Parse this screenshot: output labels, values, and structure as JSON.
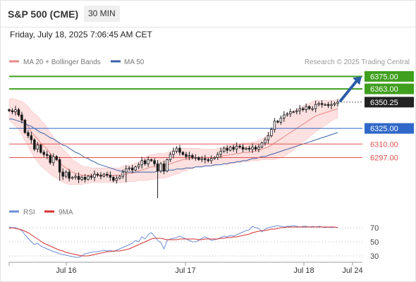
{
  "header": {
    "title": "S&P 500 (CME)",
    "timeframe": "30 MIN",
    "timestamp": "Friday, July 18, 2025 7:06:45 AM CET"
  },
  "main_legend": {
    "ma20_bb": "MA 20 + Bollinger Bands",
    "ma50": "MA 50",
    "credit": "Research © 2025 Trading Central"
  },
  "rsi_legend": {
    "rsi": "RSI",
    "ma9": "9MA"
  },
  "colors": {
    "resistance": "#3f9f1e",
    "support_strong": "#2f68c8",
    "support": "#e05050",
    "price_tag": "#222222",
    "bollinger": "#fde0e0",
    "ma20": "#e88a8a",
    "ma50": "#3a62a8",
    "candle": "#1a1a1a",
    "rsi": "#6d8fd8",
    "rsi_ma": "#d63030",
    "arrow": "#2a5da8"
  },
  "chart_data": [
    {
      "type": "candlestick",
      "instrument": "S&P 500 (CME)",
      "interval": "30 MIN",
      "x_labels": [
        "Jul 16",
        "Jul 17",
        "Jul 18",
        "Jul 24"
      ],
      "ylim": [
        6258,
        6380
      ],
      "levels": [
        {
          "value": 6375.0,
          "label": "6375.00",
          "kind": "resistance"
        },
        {
          "value": 6363.0,
          "label": "6363.00",
          "kind": "resistance"
        },
        {
          "value": 6350.25,
          "label": "6350.25",
          "kind": "current"
        },
        {
          "value": 6325.0,
          "label": "6325.00",
          "kind": "pivot"
        },
        {
          "value": 6310.0,
          "label": "6310.00",
          "kind": "support"
        },
        {
          "value": 6297.0,
          "label": "6297.00",
          "kind": "support"
        }
      ],
      "close": [
        6342,
        6341,
        6343,
        6338,
        6333,
        6321,
        6318,
        6314,
        6305,
        6309,
        6302,
        6300,
        6299,
        6292,
        6298,
        6295,
        6283,
        6279,
        6283,
        6277,
        6278,
        6279,
        6276,
        6278,
        6276,
        6279,
        6278,
        6281,
        6280,
        6279,
        6281,
        6280,
        6278,
        6275,
        6277,
        6279,
        6283,
        6286,
        6287,
        6285,
        6288,
        6290,
        6294,
        6291,
        6295,
        6294,
        6291,
        6284,
        6291,
        6284,
        6295,
        6300,
        6303,
        6306,
        6302,
        6300,
        6298,
        6299,
        6297,
        6297,
        6295,
        6296,
        6295,
        6294,
        6296,
        6297,
        6300,
        6303,
        6306,
        6304,
        6307,
        6305,
        6308,
        6307,
        6305,
        6306,
        6305,
        6307,
        6305,
        6307,
        6311,
        6314,
        6318,
        6324,
        6332,
        6331,
        6335,
        6338,
        6339,
        6341,
        6341,
        6342,
        6344,
        6343,
        6346,
        6344,
        6344,
        6348,
        6349,
        6348,
        6348,
        6347,
        6348,
        6349,
        6350.25
      ],
      "ma20": [
        6343,
        6342,
        6340,
        6338,
        6335,
        6331,
        6327,
        6322,
        6318,
        6315,
        6311,
        6308,
        6305,
        6301,
        6298,
        6295,
        6292,
        6289,
        6287,
        6285,
        6283,
        6282,
        6281,
        6280,
        6280,
        6280,
        6280,
        6280,
        6280,
        6280,
        6280,
        6280,
        6280,
        6280,
        6280,
        6280,
        6281,
        6281,
        6282,
        6282,
        6283,
        6284,
        6285,
        6286,
        6287,
        6288,
        6288,
        6289,
        6289,
        6289,
        6290,
        6291,
        6292,
        6293,
        6294,
        6295,
        6295,
        6296,
        6296,
        6297,
        6297,
        6297,
        6297,
        6297,
        6297,
        6297,
        6298,
        6298,
        6299,
        6299,
        6300,
        6300,
        6301,
        6301,
        6302,
        6302,
        6302,
        6303,
        6303,
        6304,
        6305,
        6306,
        6307,
        6309,
        6311,
        6313,
        6315,
        6317,
        6319,
        6321,
        6323,
        6325,
        6327,
        6329,
        6331,
        6333,
        6335,
        6337,
        6338,
        6339,
        6340,
        6341,
        6342,
        6343,
        6344
      ],
      "ma50": [
        6334,
        6334,
        6333,
        6332,
        6331,
        6330,
        6328,
        6327,
        6325,
        6323,
        6321,
        6320,
        6318,
        6316,
        6315,
        6313,
        6311,
        6309,
        6308,
        6306,
        6304,
        6302,
        6301,
        6299,
        6297,
        6296,
        6294,
        6293,
        6291,
        6290,
        6289,
        6288,
        6287,
        6286,
        6285,
        6284,
        6284,
        6283,
        6283,
        6283,
        6283,
        6283,
        6283,
        6283,
        6283,
        6283,
        6283,
        6284,
        6284,
        6284,
        6285,
        6285,
        6285,
        6286,
        6286,
        6286,
        6287,
        6287,
        6287,
        6288,
        6288,
        6288,
        6289,
        6289,
        6289,
        6290,
        6290,
        6290,
        6291,
        6291,
        6292,
        6292,
        6293,
        6293,
        6294,
        6294,
        6295,
        6296,
        6296,
        6297,
        6298,
        6298,
        6299,
        6300,
        6301,
        6302,
        6303,
        6304,
        6305,
        6306,
        6307,
        6308,
        6309,
        6310,
        6311,
        6312,
        6313,
        6314,
        6315,
        6316,
        6317,
        6318,
        6319,
        6320,
        6321
      ],
      "bb_width": [
        10,
        12,
        13,
        14,
        16,
        18,
        19,
        20,
        21,
        22,
        22,
        22,
        21,
        20,
        19,
        18,
        17,
        16,
        15,
        14,
        12,
        11,
        10,
        9,
        8,
        8,
        7,
        7,
        7,
        7,
        7,
        7,
        7,
        7,
        7,
        7,
        8,
        8,
        8,
        8,
        9,
        9,
        10,
        11,
        12,
        12,
        12,
        12,
        12,
        12,
        12,
        12,
        12,
        12,
        12,
        11,
        11,
        10,
        10,
        9,
        9,
        8,
        8,
        8,
        8,
        8,
        8,
        8,
        8,
        9,
        9,
        9,
        9,
        9,
        9,
        9,
        9,
        9,
        9,
        10,
        10,
        11,
        12,
        14,
        16,
        17,
        18,
        19,
        19,
        19,
        19,
        18,
        18,
        17,
        17,
        16,
        16,
        15,
        14,
        13,
        12,
        11,
        10,
        9,
        9
      ],
      "forecast_arrow": {
        "from": 6350.25,
        "to": 6375.0
      }
    },
    {
      "type": "line",
      "name": "RSI",
      "levels": [
        70,
        50,
        30
      ],
      "ylim": [
        20,
        82
      ],
      "rsi": [
        71,
        70,
        70,
        68,
        66,
        60,
        55,
        50,
        46,
        48,
        44,
        42,
        40,
        38,
        36,
        35,
        33,
        32,
        31,
        30,
        29,
        28,
        28,
        30,
        33,
        34,
        35,
        36,
        36,
        37,
        38,
        37,
        38,
        36,
        38,
        40,
        42,
        44,
        46,
        48,
        52,
        50,
        57,
        54,
        60,
        63,
        58,
        52,
        49,
        40,
        52,
        54,
        55,
        56,
        58,
        56,
        54,
        52,
        50,
        50,
        52,
        55,
        57,
        55,
        52,
        53,
        54,
        56,
        58,
        57,
        59,
        58,
        60,
        62,
        64,
        66,
        67,
        72,
        70,
        69,
        64,
        68,
        70,
        71,
        72,
        73,
        72,
        71,
        72,
        72,
        73,
        72,
        71,
        72,
        72,
        71,
        72,
        71,
        72,
        71,
        70,
        71,
        70,
        71,
        70
      ],
      "ma9": [
        69,
        70,
        69,
        68,
        67,
        65,
        63,
        60,
        57,
        54,
        51,
        48,
        46,
        44,
        42,
        40,
        38,
        37,
        35,
        34,
        33,
        32,
        31,
        30,
        30,
        30,
        31,
        32,
        33,
        34,
        35,
        36,
        36,
        37,
        37,
        37,
        38,
        39,
        40,
        42,
        44,
        46,
        48,
        50,
        52,
        54,
        55,
        55,
        55,
        54,
        53,
        53,
        53,
        53,
        54,
        54,
        54,
        54,
        54,
        54,
        53,
        53,
        54,
        54,
        54,
        54,
        54,
        55,
        55,
        56,
        56,
        57,
        57,
        58,
        59,
        60,
        61,
        63,
        64,
        65,
        66,
        66,
        67,
        68,
        68,
        69,
        70,
        70,
        71,
        71,
        71,
        71,
        71,
        71,
        71,
        71,
        71,
        71,
        71,
        71,
        71,
        71,
        71,
        71,
        70
      ],
      "labels": [
        "70",
        "50",
        "30"
      ]
    }
  ]
}
